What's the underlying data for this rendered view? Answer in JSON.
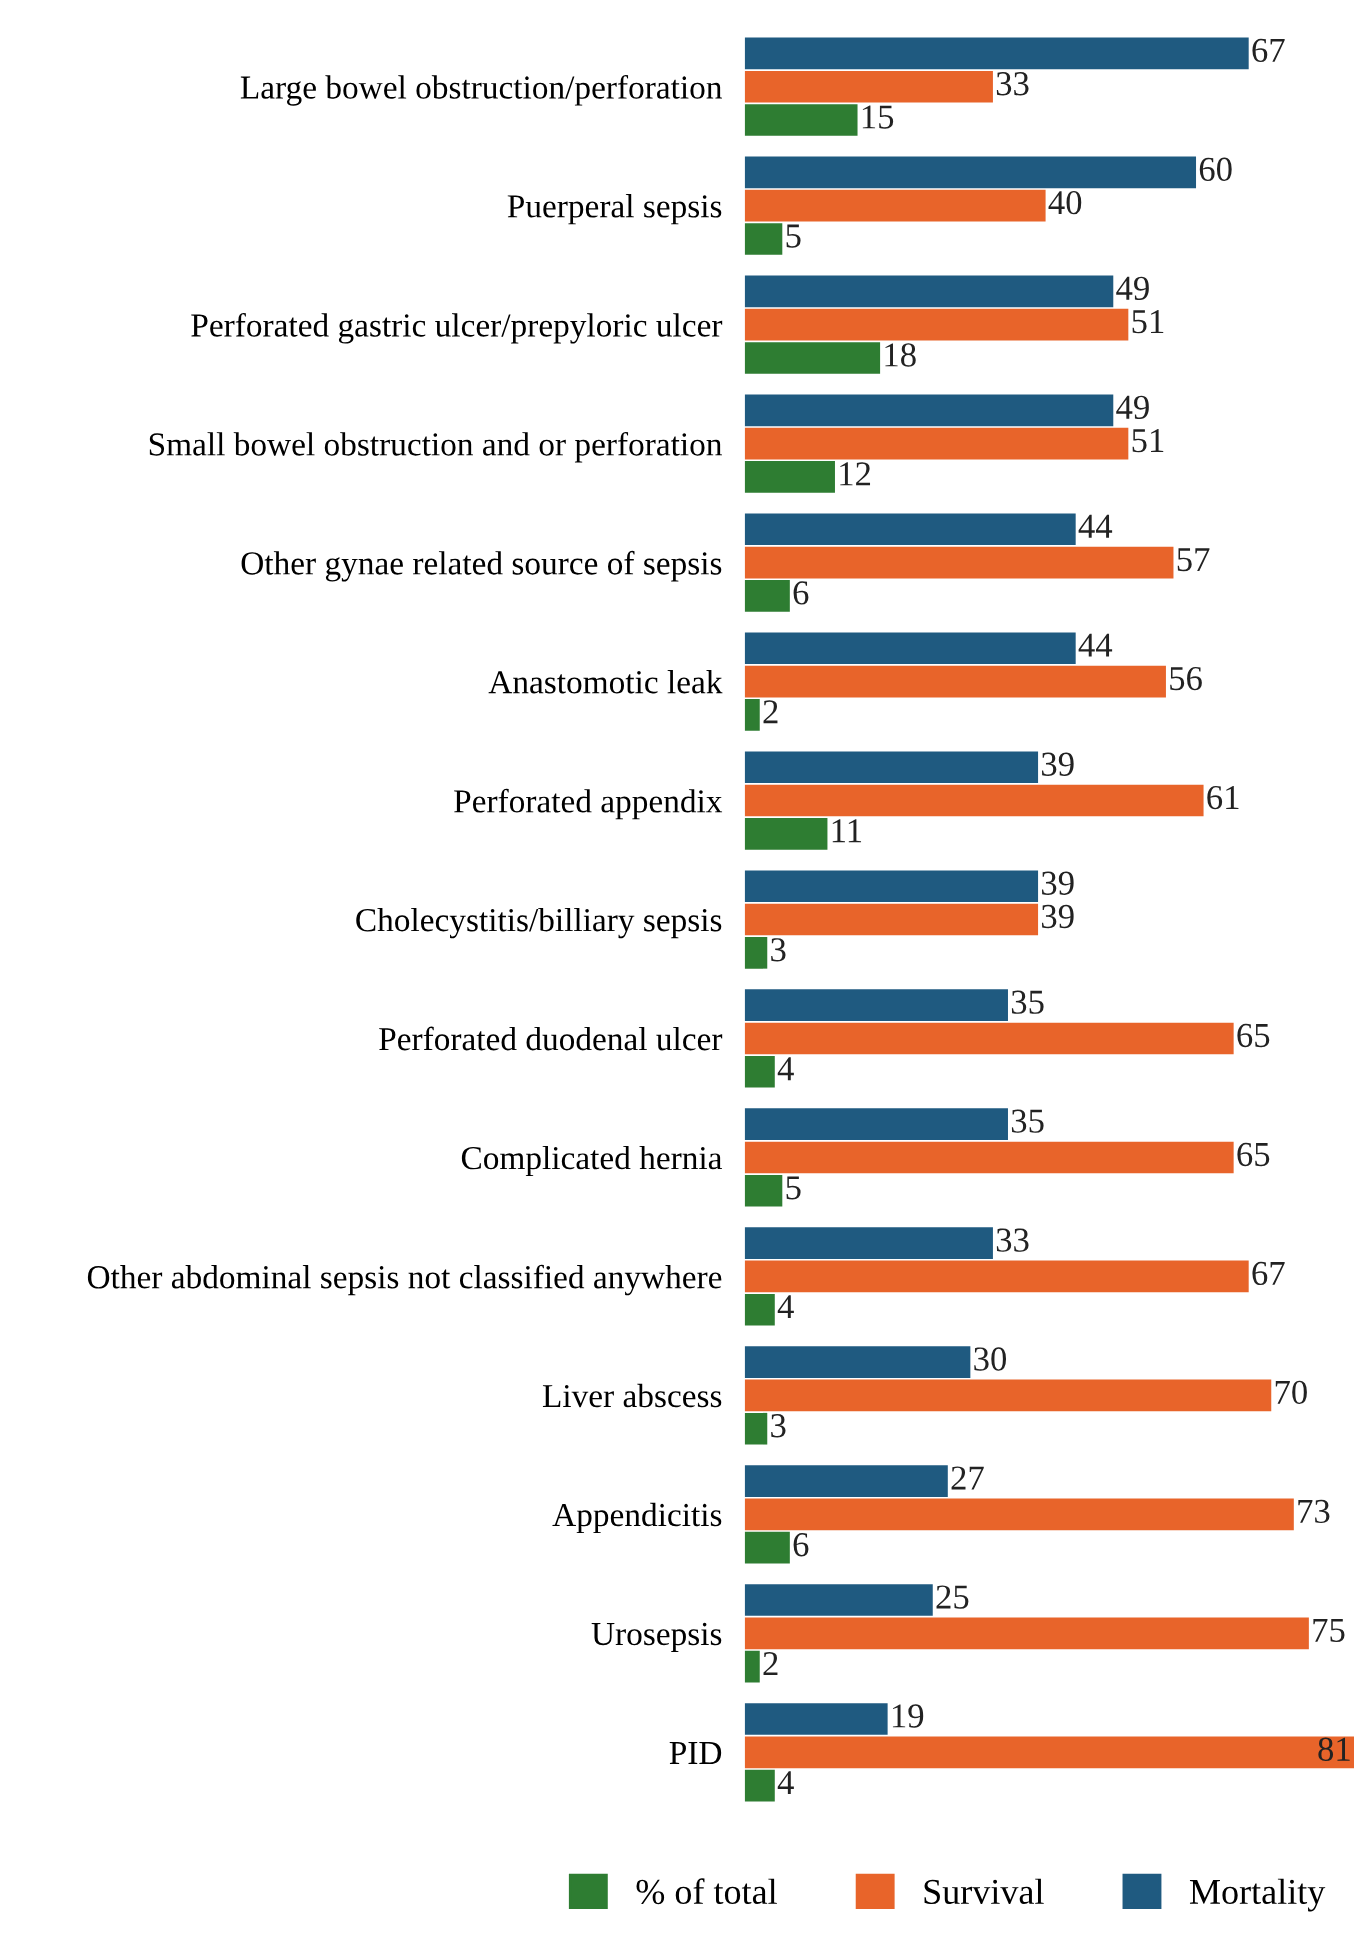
{
  "chart_data": {
    "type": "bar",
    "orientation": "horizontal",
    "data_labels": true,
    "legend": "bottom",
    "grid": false,
    "categories": [
      "Large bowel obstruction/perforation",
      "Puerperal sepsis",
      "Perforated gastric ulcer/prepyloric ulcer",
      "Small bowel obstruction and or perforation",
      "Other gynae related source of sepsis",
      "Anastomotic leak",
      "Perforated appendix",
      "Cholecystitis/billiary sepsis",
      "Perforated duodenal ulcer",
      "Complicated hernia",
      "Other abdominal sepsis not classified anywhere",
      "Liver abscess",
      "Appendicitis",
      "Urosepsis",
      "PID"
    ],
    "series": [
      {
        "name": "Mortality",
        "color": "#1f5a80",
        "values": [
          67,
          60,
          49,
          49,
          44,
          44,
          39,
          39,
          35,
          35,
          33,
          30,
          27,
          25,
          19
        ]
      },
      {
        "name": "Survival",
        "color": "#e8642a",
        "values": [
          33,
          40,
          51,
          51,
          57,
          56,
          61,
          39,
          65,
          65,
          67,
          70,
          73,
          75,
          81
        ]
      },
      {
        "name": "% of total",
        "color": "#2e7d32",
        "values": [
          15,
          5,
          18,
          12,
          6,
          2,
          11,
          3,
          4,
          5,
          4,
          3,
          6,
          2,
          4
        ]
      }
    ]
  }
}
